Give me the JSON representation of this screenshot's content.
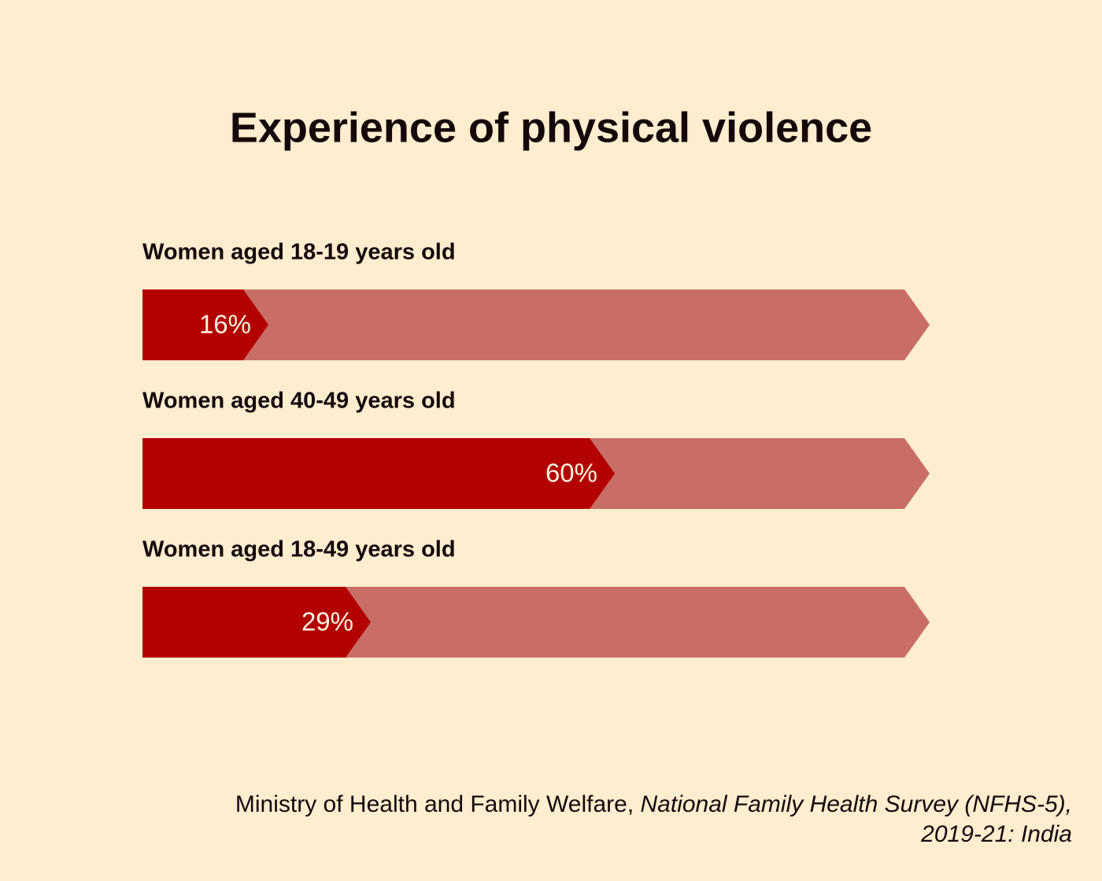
{
  "chart_data": {
    "type": "bar",
    "orientation": "horizontal",
    "title": "Experience of physical violence",
    "categories": [
      "Women aged 18-19 years old",
      "Women aged 40-49 years old",
      "Women aged 18-49 years old"
    ],
    "values": [
      16,
      60,
      29
    ],
    "value_labels": [
      "16%",
      "60%",
      "29%"
    ],
    "xlim": [
      0,
      100
    ],
    "color": "#b30000",
    "track_color": "#c86e66"
  },
  "source": {
    "publisher": "Ministry of Health and Family Welfare,",
    "publication": "National Family Health Survey (NFHS-5),",
    "publication_detail": "2019-21: India"
  }
}
